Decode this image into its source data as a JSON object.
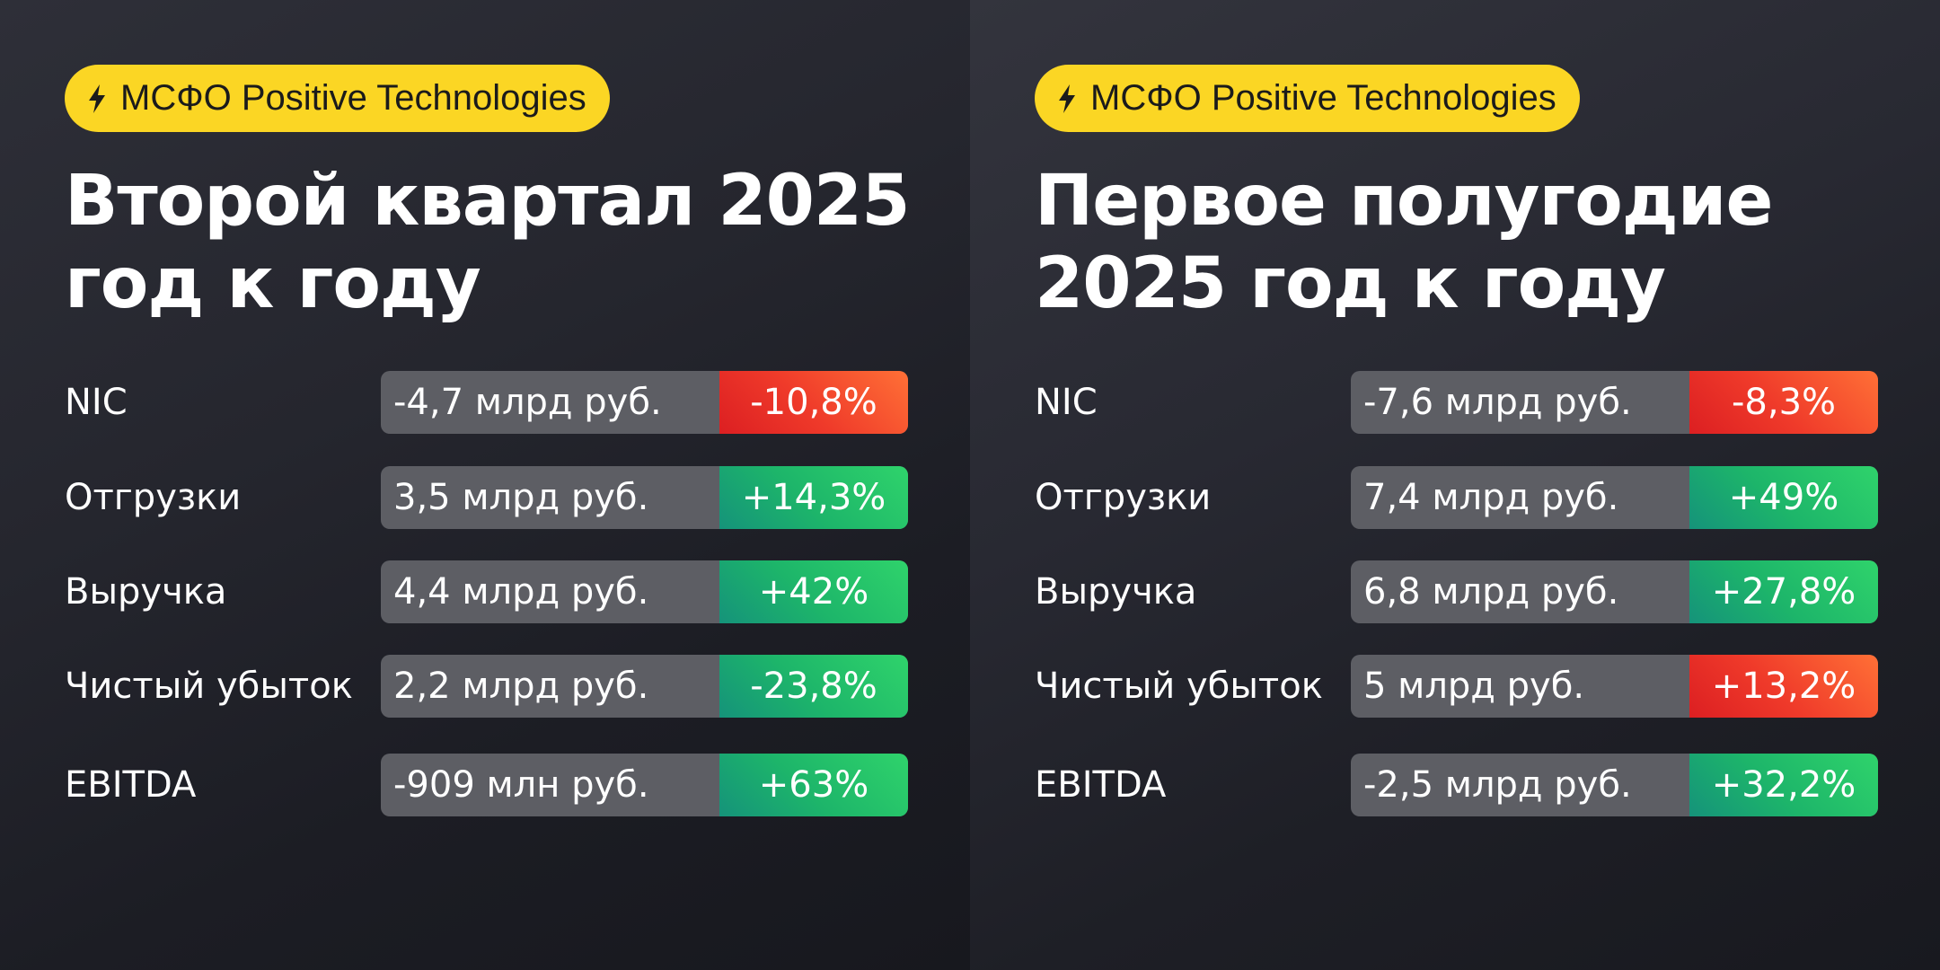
{
  "colors": {
    "badge_bg": "#fbd624",
    "positive": "#1db56a",
    "negative": "#ef3a2a",
    "value_bg": "#5d5e64",
    "text": "#ffffff"
  },
  "badge_icon": "lightning-bolt-icon",
  "cards": [
    {
      "badge": "МСФО Positive Technologies",
      "title_line1": "Второй квартал 2025",
      "title_line2": "год к году",
      "rows": [
        {
          "label": "NIC",
          "value": "-4,7 млрд руб.",
          "change": "-10,8%",
          "trend": "negative"
        },
        {
          "label": "Отгрузки",
          "value": "3,5 млрд руб.",
          "change": "+14,3%",
          "trend": "positive"
        },
        {
          "label": "Выручка",
          "value": "4,4 млрд руб.",
          "change": "+42%",
          "trend": "positive"
        },
        {
          "label": "Чистый убыток",
          "value": "2,2 млрд руб.",
          "change": "-23,8%",
          "trend": "positive"
        },
        {
          "label": "EBITDA",
          "value": "-909 млн руб.",
          "change": "+63%",
          "trend": "positive"
        }
      ]
    },
    {
      "badge": "МСФО Positive Technologies",
      "title_line1": "Первое полугодие",
      "title_line2": "2025 год к году",
      "rows": [
        {
          "label": "NIC",
          "value": "-7,6 млрд руб.",
          "change": "-8,3%",
          "trend": "negative"
        },
        {
          "label": "Отгрузки",
          "value": "7,4 млрд руб.",
          "change": "+49%",
          "trend": "positive"
        },
        {
          "label": "Выручка",
          "value": "6,8 млрд руб.",
          "change": "+27,8%",
          "trend": "positive"
        },
        {
          "label": "Чистый убыток",
          "value": "5 млрд руб.",
          "change": "+13,2%",
          "trend": "negative"
        },
        {
          "label": "EBITDA",
          "value": "-2,5 млрд руб.",
          "change": "+32,2%",
          "trend": "positive"
        }
      ]
    }
  ]
}
